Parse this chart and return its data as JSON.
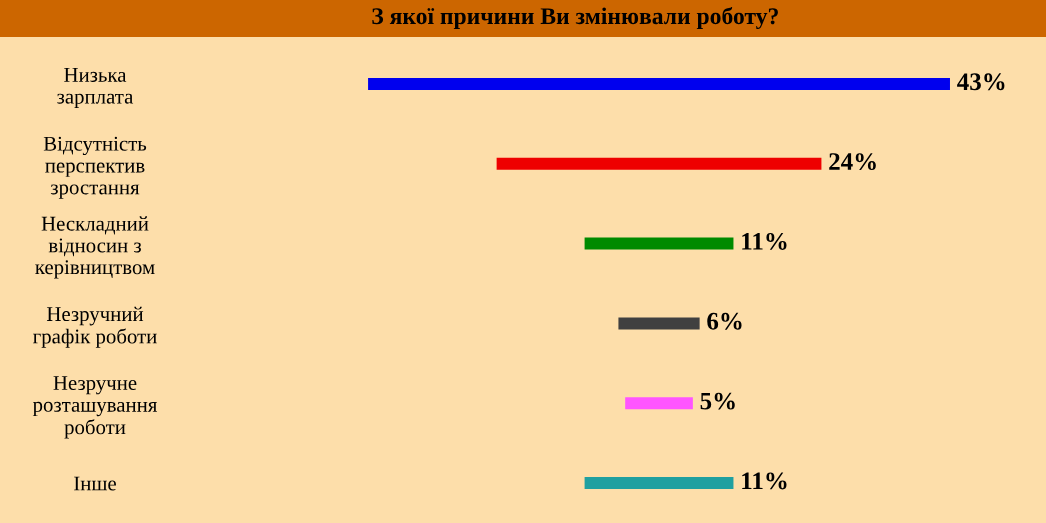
{
  "chart_data": {
    "type": "other",
    "title": "З якої причини Ви змінювали роботу?",
    "categories": [
      "Низька\nзарплата",
      "Відсутність\nперспектив\nзростання",
      "Нескладний\nвідносин з\nкерівництвом",
      "Незручний\nграфік роботи",
      "Незручне\nрозташування\nроботи",
      "Інше"
    ],
    "values": [
      43,
      24,
      11,
      6,
      5,
      11
    ],
    "colors": [
      "#0000ee",
      "#ee0000",
      "#008a00",
      "#404040",
      "#ff55ff",
      "#20a0a0"
    ],
    "value_labels": [
      "43%",
      "24%",
      "11%",
      "6%",
      "5%",
      "11%"
    ]
  }
}
